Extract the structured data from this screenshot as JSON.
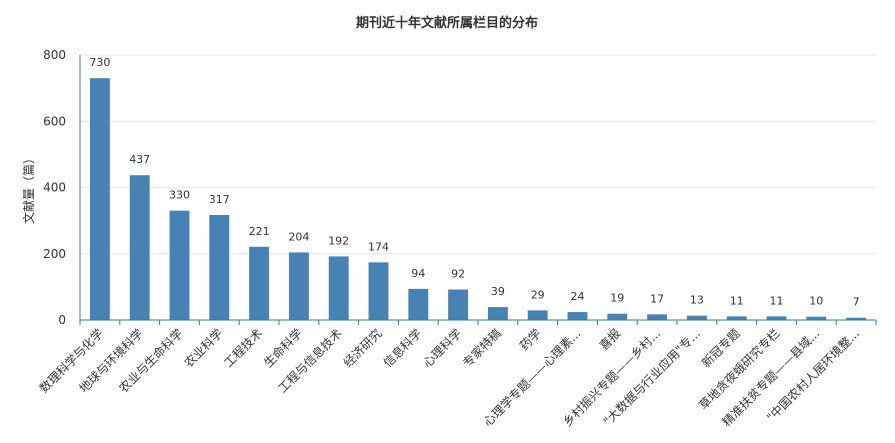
{
  "chart_data": {
    "type": "bar",
    "title": "期刊近十年文献所属栏目的分布",
    "xlabel": "",
    "ylabel": "文献量（篇）",
    "ylim": [
      0,
      800
    ],
    "yticks": [
      0,
      200,
      400,
      600,
      800
    ],
    "grid": true,
    "legend": "none",
    "bar_color": "#4682b4",
    "categories": [
      "数理科学与化学",
      "地球与环境科学",
      "农业与生命科学",
      "农业科学",
      "工程技术",
      "生命科学",
      "工程与信息技术",
      "经济研究",
      "信息科学",
      "心理科学",
      "专家特稿",
      "药学",
      "心理学专题——心理素...",
      "喜报",
      "乡村振兴专题——乡村...",
      "\"大数据与行业应用\"专...",
      "新冠专题",
      "草地贪夜蛾研究专栏",
      "精准扶贫专题——县域...",
      "\"中国农村人居环境整..."
    ],
    "values": [
      730,
      437,
      330,
      317,
      221,
      204,
      192,
      174,
      94,
      92,
      39,
      29,
      24,
      19,
      17,
      13,
      11,
      11,
      10,
      7
    ]
  }
}
